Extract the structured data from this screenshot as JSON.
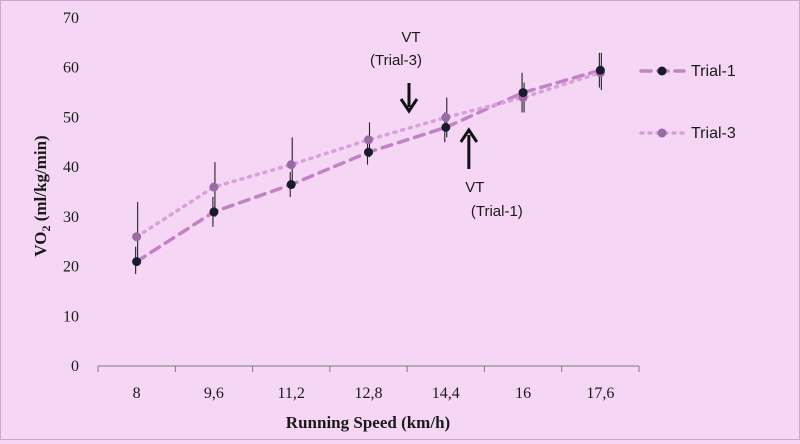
{
  "chart_data": {
    "type": "line",
    "xlabel": "Running  Speed (km/h)",
    "ylabel_main": "VO",
    "ylabel_sub": "2",
    "ylabel_rest": " (ml/kg/min)",
    "categories": [
      "8",
      "9,6",
      "11,2",
      "12,8",
      "14,4",
      "16",
      "17,6"
    ],
    "ylim": [
      0,
      70
    ],
    "yticks": [
      0,
      10,
      20,
      30,
      40,
      50,
      60,
      70
    ],
    "grid": false,
    "legend_position": "right",
    "series": [
      {
        "name": "Trial-1",
        "values": [
          21,
          31,
          36.5,
          43,
          48,
          55,
          59.5
        ],
        "error_low": [
          18.5,
          28,
          34,
          40.5,
          45,
          51,
          56
        ],
        "error_high": [
          24,
          34,
          39,
          45.5,
          51,
          59,
          63
        ],
        "color": "#c282c4",
        "marker_color": "#1a1a2e",
        "line_style": "dashed"
      },
      {
        "name": "Trial-3",
        "values": [
          26,
          36,
          40.5,
          45.5,
          50,
          54,
          59
        ],
        "error_low": [
          21,
          30,
          36,
          42,
          46,
          51,
          55.5
        ],
        "error_high": [
          33,
          41,
          46,
          49,
          54,
          57,
          63
        ],
        "color": "#d9a0da",
        "marker_color": "#9a6ba3",
        "line_style": "dotted"
      }
    ],
    "annotations": [
      {
        "line1": "VT",
        "line2": "(Trial-3)",
        "arrow": "down",
        "target_x_index": 3.55,
        "target_y": 49
      },
      {
        "line1": "VT",
        "line2": "(Trial-1)",
        "arrow": "up",
        "target_x_index": 4.35,
        "target_y": 48
      }
    ]
  },
  "colors": {
    "background": "#f5d7f5",
    "axis": "#7a7a7a",
    "error_bar": "#222222"
  }
}
